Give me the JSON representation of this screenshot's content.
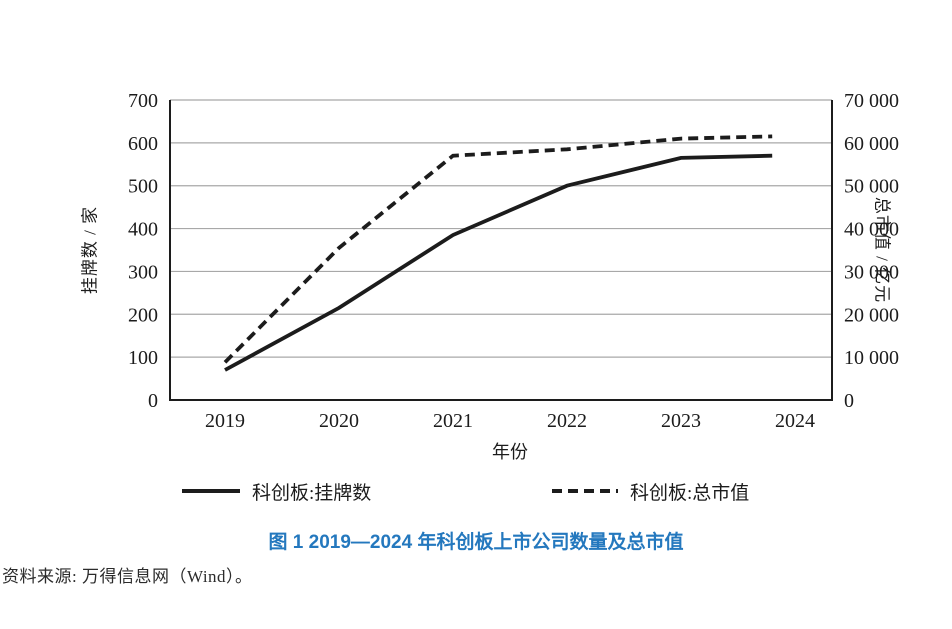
{
  "chart_data": {
    "type": "line",
    "categories": [
      "2019",
      "2020",
      "2021",
      "2022",
      "2023",
      "2024"
    ],
    "series": [
      {
        "name": "科创板:挂牌数",
        "axis": "left",
        "line_style": "solid",
        "values": [
          70,
          215,
          385,
          500,
          565,
          570
        ]
      },
      {
        "name": "科创板:总市值",
        "axis": "right",
        "line_style": "dashed",
        "values": [
          8800,
          35500,
          57000,
          58500,
          61000,
          61500
        ]
      }
    ],
    "left_axis": {
      "label": "挂牌数 / 家",
      "min": 0,
      "max": 700,
      "step": 100,
      "tick_labels": [
        "0",
        "100",
        "200",
        "300",
        "400",
        "500",
        "600",
        "700"
      ]
    },
    "right_axis": {
      "label": "总市值 / 亿元",
      "min": 0,
      "max": 70000,
      "step": 10000,
      "tick_labels": [
        "0",
        "10 000",
        "20 000",
        "30 000",
        "40 000",
        "50 000",
        "60 000",
        "70 000"
      ]
    },
    "xlabel": "年份",
    "grid": true,
    "legend_position": "bottom",
    "line_color": "#1c1c1c",
    "gridline_color": "#a8a8a8",
    "last_point_x": 2023.8
  },
  "caption": {
    "text": "图 1  2019—2024 年科创板上市公司数量及总市值",
    "color": "#2478be"
  },
  "source": {
    "text": "资料来源: 万得信息网（Wind）。"
  }
}
